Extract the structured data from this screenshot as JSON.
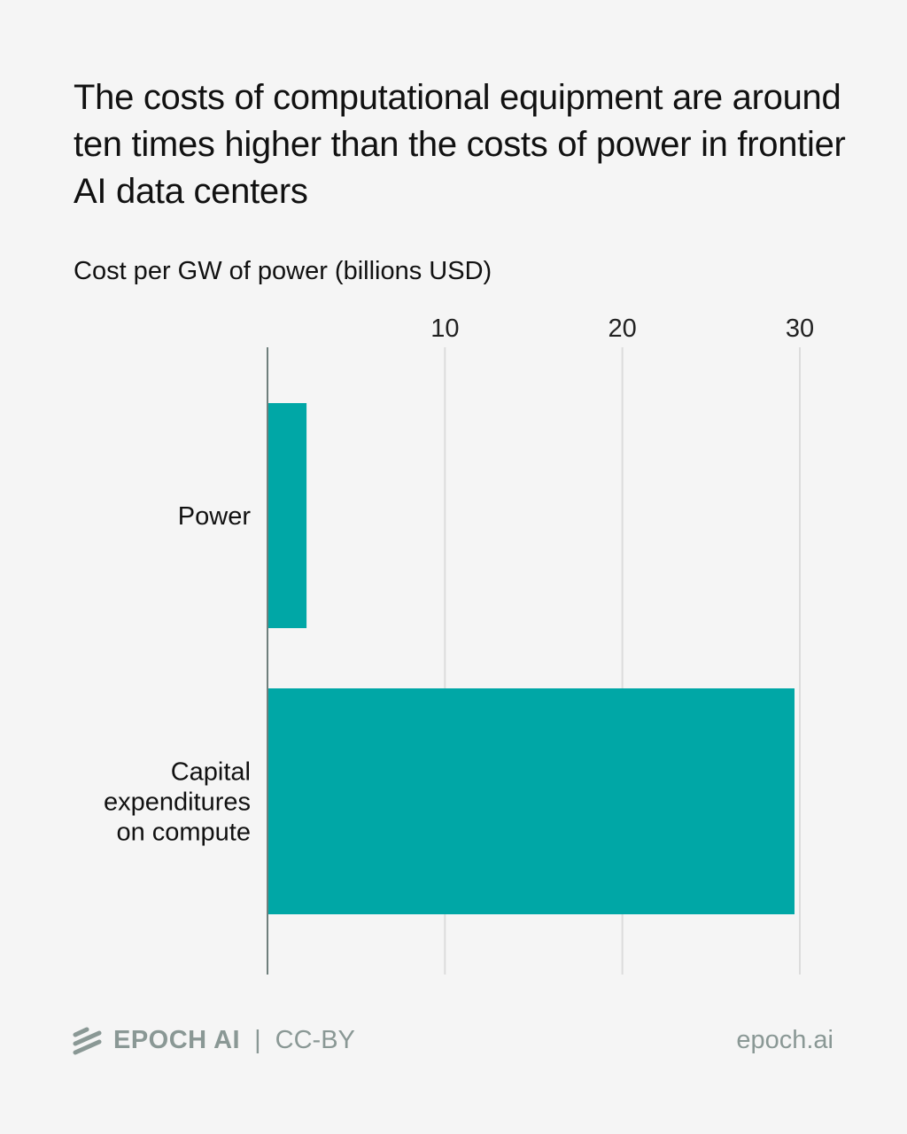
{
  "chart_data": {
    "type": "bar",
    "orientation": "horizontal",
    "title": "The costs of computational equipment are around ten times higher than the costs of power in frontier AI data centers",
    "ylabel": "Cost per GW of power (billions USD)",
    "categories": [
      "Power",
      "Capital expenditures on compute"
    ],
    "category_lines": [
      [
        "Power"
      ],
      [
        "Capital",
        "expenditures",
        "on compute"
      ]
    ],
    "values": [
      2.2,
      29.7
    ],
    "xlim": [
      0,
      30
    ],
    "xticks": [
      10,
      20,
      30
    ],
    "grid": true,
    "bar_color": "#00a7a6"
  },
  "footer": {
    "brand": "EPOCH AI",
    "separator": "|",
    "license": "CC-BY",
    "site": "epoch.ai",
    "logo_icon": "epoch-stripes-icon"
  }
}
